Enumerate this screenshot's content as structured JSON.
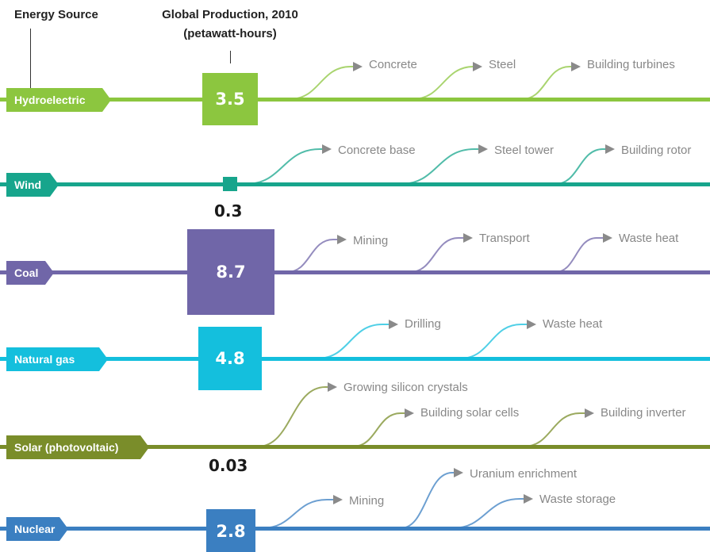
{
  "headers": {
    "energy_source": "Energy Source",
    "production_line1": "Global Production, 2010",
    "production_line2": "(petawatt-hours)"
  },
  "rows": [
    {
      "source": "Hydroelectric",
      "production": 3.5,
      "production_label": "3.5",
      "color": "#8cc63f",
      "steps": [
        "Concrete",
        "Steel",
        "Building turbines"
      ]
    },
    {
      "source": "Wind",
      "production": 0.3,
      "production_label": "0.3",
      "color": "#17a58c",
      "steps": [
        "Concrete base",
        "Steel tower",
        "Building rotor"
      ]
    },
    {
      "source": "Coal",
      "production": 8.7,
      "production_label": "8.7",
      "color": "#7066a8",
      "steps": [
        "Mining",
        "Transport",
        "Waste heat"
      ]
    },
    {
      "source": "Natural gas",
      "production": 4.8,
      "production_label": "4.8",
      "color": "#14bfdd",
      "steps": [
        "Drilling",
        "Waste heat"
      ]
    },
    {
      "source": "Solar (photovoltaic)",
      "production": 0.03,
      "production_label": "0.03",
      "color": "#7a8d2a",
      "steps": [
        "Growing silicon crystals",
        "Building solar cells",
        "Building inverter"
      ]
    },
    {
      "source": "Nuclear",
      "production": 2.8,
      "production_label": "2.8",
      "color": "#3b7fc1",
      "steps": [
        "Mining",
        "Uranium enrichment",
        "Waste storage"
      ]
    }
  ]
}
